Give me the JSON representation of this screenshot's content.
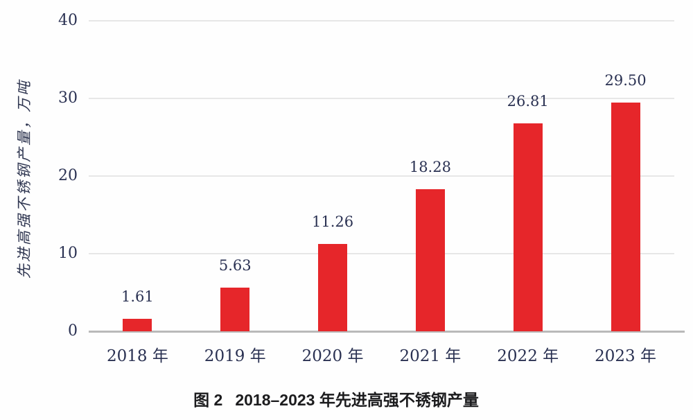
{
  "figure": {
    "caption_prefix": "图 2",
    "caption_text": "2018–2023 年先进高强不锈钢产量"
  },
  "chart_data": {
    "type": "bar",
    "title": "图 2 2018–2023 年先进高强不锈钢产量",
    "categories": [
      "2018 年",
      "2019 年",
      "2020 年",
      "2021 年",
      "2022 年",
      "2023 年"
    ],
    "values": [
      1.61,
      5.63,
      11.26,
      18.28,
      26.81,
      29.5
    ],
    "value_labels": [
      "1.61",
      "5.63",
      "11.26",
      "18.28",
      "26.81",
      "29.50"
    ],
    "xlabel": "",
    "ylabel": "先进高强不锈钢产量，万吨",
    "ylim": [
      0,
      40
    ],
    "yticks": [
      0,
      10,
      20,
      30,
      40
    ],
    "grid": "horizontal",
    "legend": "none"
  },
  "colors": {
    "bar": "#e6262a",
    "gridline": "#e7e7e7",
    "baseline": "#b9b9b9",
    "axis_text": "#2a3152",
    "caption_text": "#1c1c1e",
    "background": "#fefefe"
  }
}
